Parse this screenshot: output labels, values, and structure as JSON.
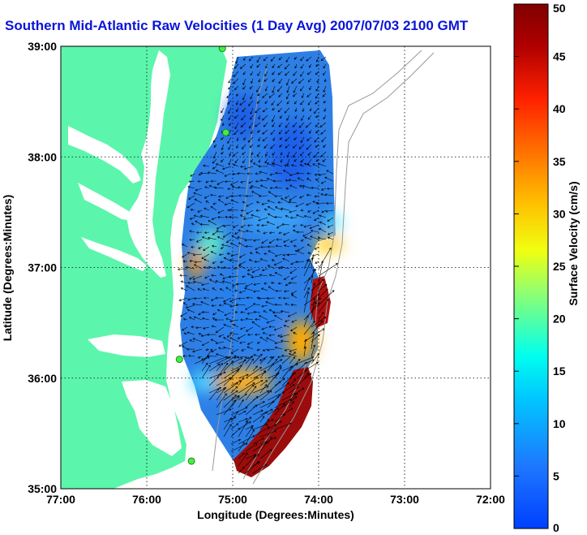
{
  "title": "Southern Mid-Atlantic Raw Velocities (1 Day Avg) 2007/07/03 2100 GMT",
  "xaxis": {
    "label": "Longitude (Degrees:Minutes)",
    "ticks": [
      "77:00",
      "76:00",
      "75:00",
      "74:00",
      "73:00",
      "72:00"
    ],
    "range_deg_west": [
      77,
      72
    ]
  },
  "yaxis": {
    "label": "Latitude (Degrees:Minutes)",
    "ticks": [
      "39:00",
      "38:00",
      "37:00",
      "36:00",
      "35:00"
    ],
    "range_deg_north": [
      35,
      39
    ]
  },
  "colorbar": {
    "label": "Surface Velocity (cm/s)",
    "ticks": [
      "50",
      "45",
      "40",
      "35",
      "30",
      "25",
      "20",
      "15",
      "10",
      "5",
      "0"
    ],
    "range": [
      0,
      50
    ]
  },
  "grid": true,
  "colors": {
    "land": "#5cf5ac",
    "water": "#ffffff",
    "title": "#0a14d8",
    "vectors": "#000000",
    "bathymetry": "#999999"
  },
  "stations": [
    {
      "lon": 75.12,
      "lat": 38.98
    },
    {
      "lon": 75.08,
      "lat": 38.22
    },
    {
      "lon": 75.62,
      "lat": 36.17
    },
    {
      "lon": 75.48,
      "lat": 35.25
    }
  ]
}
